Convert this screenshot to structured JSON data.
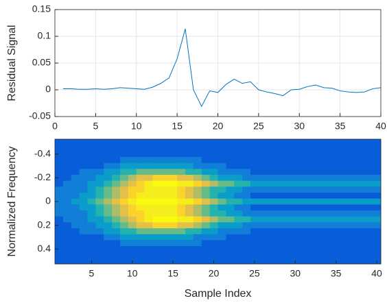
{
  "chart_data": [
    {
      "type": "line",
      "ylabel": "Residual Signal",
      "color": "#0072bd",
      "grid": true,
      "x": [
        1,
        2,
        3,
        4,
        5,
        6,
        7,
        8,
        9,
        10,
        11,
        12,
        13,
        14,
        15,
        16,
        17,
        18,
        19,
        20,
        21,
        22,
        23,
        24,
        25,
        26,
        27,
        28,
        29,
        30,
        31,
        32,
        33,
        34,
        35,
        36,
        37,
        38,
        39,
        40
      ],
      "values": [
        0.002,
        0.002,
        0.001,
        0.001,
        0.002,
        0.001,
        0.002,
        0.004,
        0.003,
        0.002,
        0.001,
        0.005,
        0.012,
        0.022,
        0.058,
        0.114,
        0.0,
        -0.031,
        -0.002,
        -0.005,
        0.01,
        0.02,
        0.012,
        0.015,
        0.0,
        -0.004,
        -0.007,
        -0.011,
        0.0,
        0.001,
        0.006,
        0.009,
        0.004,
        0.003,
        -0.002,
        -0.004,
        -0.005,
        -0.004,
        0.002,
        0.004
      ],
      "xlim": [
        0,
        40
      ],
      "xticks": [
        0,
        5,
        10,
        15,
        20,
        25,
        30,
        35,
        40
      ],
      "ylim": [
        -0.05,
        0.15
      ],
      "yticks": [
        -0.05,
        0,
        0.05,
        0.1,
        0.15
      ]
    },
    {
      "type": "heatmap",
      "xlabel": "Sample Index",
      "ylabel": "Normalized Frequency",
      "yreverse": true,
      "clim": [
        0,
        1
      ],
      "x": [
        1,
        2,
        3,
        4,
        5,
        6,
        7,
        8,
        9,
        10,
        11,
        12,
        13,
        14,
        15,
        16,
        17,
        18,
        19,
        20,
        21,
        22,
        23,
        24,
        25,
        26,
        27,
        28,
        29,
        30,
        31,
        32,
        33,
        34,
        35,
        36,
        37,
        38,
        39,
        40
      ],
      "y": [
        -0.5,
        -0.45,
        -0.4,
        -0.35,
        -0.3,
        -0.25,
        -0.2,
        -0.15,
        -0.1,
        -0.05,
        0,
        0.05,
        0.1,
        0.15,
        0.2,
        0.25,
        0.3,
        0.35,
        0.4,
        0.45,
        0.5
      ],
      "z": [
        [
          0.1,
          0.1,
          0.1,
          0.1,
          0.1,
          0.1,
          0.1,
          0.1,
          0.1,
          0.1,
          0.1,
          0.1,
          0.1,
          0.1,
          0.1,
          0.1,
          0.1,
          0.1,
          0.1,
          0.1,
          0.1,
          0.1,
          0.1,
          0.1,
          0.1,
          0.1,
          0.1,
          0.1,
          0.1,
          0.1,
          0.1,
          0.1,
          0.1,
          0.1,
          0.1,
          0.1,
          0.1,
          0.1,
          0.1,
          0.1
        ],
        [
          0.1,
          0.1,
          0.1,
          0.1,
          0.1,
          0.1,
          0.1,
          0.1,
          0.1,
          0.1,
          0.1,
          0.1,
          0.1,
          0.1,
          0.1,
          0.1,
          0.1,
          0.1,
          0.1,
          0.1,
          0.1,
          0.1,
          0.1,
          0.1,
          0.1,
          0.1,
          0.1,
          0.1,
          0.1,
          0.1,
          0.1,
          0.1,
          0.1,
          0.1,
          0.1,
          0.1,
          0.1,
          0.1,
          0.1,
          0.1
        ],
        [
          0.1,
          0.1,
          0.1,
          0.1,
          0.1,
          0.1,
          0.1,
          0.1,
          0.1,
          0.1,
          0.1,
          0.1,
          0.1,
          0.1,
          0.1,
          0.1,
          0.1,
          0.1,
          0.1,
          0.1,
          0.1,
          0.1,
          0.1,
          0.1,
          0.1,
          0.1,
          0.1,
          0.1,
          0.1,
          0.1,
          0.1,
          0.1,
          0.1,
          0.1,
          0.1,
          0.1,
          0.1,
          0.1,
          0.1,
          0.1
        ],
        [
          0.1,
          0.1,
          0.1,
          0.1,
          0.1,
          0.1,
          0.1,
          0.1,
          0.2,
          0.2,
          0.2,
          0.2,
          0.2,
          0.2,
          0.2,
          0.2,
          0.2,
          0.2,
          0.1,
          0.1,
          0.1,
          0.1,
          0.1,
          0.1,
          0.1,
          0.1,
          0.1,
          0.1,
          0.1,
          0.1,
          0.1,
          0.1,
          0.1,
          0.1,
          0.1,
          0.1,
          0.1,
          0.1,
          0.1,
          0.1
        ],
        [
          0.1,
          0.1,
          0.1,
          0.1,
          0.1,
          0.1,
          0.2,
          0.2,
          0.3,
          0.3,
          0.3,
          0.3,
          0.3,
          0.3,
          0.3,
          0.3,
          0.3,
          0.2,
          0.2,
          0.2,
          0.2,
          0.1,
          0.1,
          0.1,
          0.1,
          0.1,
          0.1,
          0.1,
          0.1,
          0.1,
          0.1,
          0.1,
          0.1,
          0.1,
          0.1,
          0.1,
          0.1,
          0.1,
          0.1,
          0.1
        ],
        [
          0.1,
          0.1,
          0.1,
          0.2,
          0.2,
          0.2,
          0.3,
          0.3,
          0.4,
          0.4,
          0.5,
          0.5,
          0.5,
          0.5,
          0.5,
          0.5,
          0.4,
          0.4,
          0.3,
          0.3,
          0.2,
          0.2,
          0.2,
          0.2,
          0.1,
          0.1,
          0.1,
          0.1,
          0.1,
          0.1,
          0.1,
          0.1,
          0.1,
          0.1,
          0.1,
          0.1,
          0.1,
          0.1,
          0.1,
          0.1
        ],
        [
          0.1,
          0.1,
          0.2,
          0.2,
          0.2,
          0.3,
          0.3,
          0.4,
          0.5,
          0.6,
          0.7,
          0.7,
          0.8,
          0.8,
          0.8,
          0.7,
          0.7,
          0.6,
          0.5,
          0.4,
          0.3,
          0.3,
          0.3,
          0.2,
          0.2,
          0.2,
          0.2,
          0.2,
          0.2,
          0.2,
          0.2,
          0.2,
          0.2,
          0.2,
          0.2,
          0.2,
          0.2,
          0.2,
          0.2,
          0.2
        ],
        [
          0.1,
          0.2,
          0.2,
          0.2,
          0.3,
          0.3,
          0.4,
          0.5,
          0.6,
          0.7,
          0.8,
          0.9,
          1,
          1,
          1,
          0.9,
          0.9,
          0.8,
          0.7,
          0.6,
          0.5,
          0.5,
          0.4,
          0.4,
          0.3,
          0.3,
          0.3,
          0.3,
          0.3,
          0.3,
          0.3,
          0.3,
          0.3,
          0.3,
          0.3,
          0.3,
          0.3,
          0.3,
          0.3,
          0.3
        ],
        [
          0.2,
          0.2,
          0.2,
          0.2,
          0.3,
          0.4,
          0.5,
          0.6,
          0.7,
          0.8,
          0.8,
          0.9,
          0.9,
          0.9,
          0.9,
          0.8,
          0.7,
          0.6,
          0.5,
          0.4,
          0.4,
          0.3,
          0.3,
          0.2,
          0.2,
          0.2,
          0.2,
          0.2,
          0.2,
          0.2,
          0.2,
          0.2,
          0.2,
          0.2,
          0.2,
          0.2,
          0.2,
          0.2,
          0.2,
          0.2
        ],
        [
          0.2,
          0.2,
          0.2,
          0.3,
          0.3,
          0.4,
          0.5,
          0.6,
          0.7,
          0.8,
          0.9,
          0.9,
          0.9,
          0.9,
          0.9,
          0.8,
          0.7,
          0.6,
          0.5,
          0.4,
          0.3,
          0.3,
          0.2,
          0.2,
          0.1,
          0.1,
          0.1,
          0.1,
          0.1,
          0.1,
          0.1,
          0.1,
          0.1,
          0.1,
          0.1,
          0.1,
          0.1,
          0.1,
          0.1,
          0.1
        ],
        [
          0.2,
          0.2,
          0.3,
          0.3,
          0.4,
          0.5,
          0.6,
          0.7,
          0.8,
          0.9,
          1,
          1,
          1,
          1,
          1,
          0.9,
          0.9,
          0.8,
          0.7,
          0.6,
          0.5,
          0.4,
          0.4,
          0.3,
          0.3,
          0.3,
          0.3,
          0.3,
          0.3,
          0.3,
          0.3,
          0.3,
          0.3,
          0.3,
          0.3,
          0.3,
          0.3,
          0.3,
          0.3,
          0.3
        ],
        [
          0.2,
          0.2,
          0.2,
          0.3,
          0.3,
          0.4,
          0.5,
          0.6,
          0.7,
          0.8,
          0.9,
          0.9,
          0.9,
          0.9,
          0.9,
          0.8,
          0.7,
          0.6,
          0.5,
          0.4,
          0.3,
          0.3,
          0.2,
          0.2,
          0.1,
          0.1,
          0.1,
          0.1,
          0.1,
          0.1,
          0.1,
          0.1,
          0.1,
          0.1,
          0.1,
          0.1,
          0.1,
          0.1,
          0.1,
          0.1
        ],
        [
          0.2,
          0.2,
          0.2,
          0.2,
          0.3,
          0.4,
          0.5,
          0.6,
          0.7,
          0.8,
          0.8,
          0.9,
          0.9,
          0.9,
          0.9,
          0.8,
          0.7,
          0.6,
          0.5,
          0.4,
          0.4,
          0.3,
          0.3,
          0.2,
          0.2,
          0.2,
          0.2,
          0.2,
          0.2,
          0.2,
          0.2,
          0.2,
          0.2,
          0.2,
          0.2,
          0.2,
          0.2,
          0.2,
          0.2,
          0.2
        ],
        [
          0.1,
          0.2,
          0.2,
          0.2,
          0.3,
          0.3,
          0.4,
          0.5,
          0.6,
          0.7,
          0.8,
          0.9,
          1,
          1,
          1,
          0.9,
          0.9,
          0.8,
          0.7,
          0.6,
          0.5,
          0.5,
          0.4,
          0.4,
          0.3,
          0.3,
          0.3,
          0.3,
          0.3,
          0.3,
          0.3,
          0.3,
          0.3,
          0.3,
          0.3,
          0.3,
          0.3,
          0.3,
          0.3,
          0.3
        ],
        [
          0.1,
          0.1,
          0.2,
          0.2,
          0.2,
          0.3,
          0.3,
          0.4,
          0.5,
          0.6,
          0.7,
          0.7,
          0.8,
          0.8,
          0.8,
          0.7,
          0.7,
          0.6,
          0.5,
          0.4,
          0.3,
          0.3,
          0.3,
          0.2,
          0.2,
          0.2,
          0.2,
          0.2,
          0.2,
          0.2,
          0.2,
          0.2,
          0.2,
          0.2,
          0.2,
          0.2,
          0.2,
          0.2,
          0.2,
          0.2
        ],
        [
          0.1,
          0.1,
          0.1,
          0.2,
          0.2,
          0.2,
          0.3,
          0.3,
          0.4,
          0.4,
          0.5,
          0.5,
          0.5,
          0.5,
          0.5,
          0.5,
          0.4,
          0.4,
          0.3,
          0.3,
          0.2,
          0.2,
          0.2,
          0.2,
          0.1,
          0.1,
          0.1,
          0.1,
          0.1,
          0.1,
          0.1,
          0.1,
          0.1,
          0.1,
          0.1,
          0.1,
          0.1,
          0.1,
          0.1,
          0.1
        ],
        [
          0.1,
          0.1,
          0.1,
          0.1,
          0.1,
          0.1,
          0.2,
          0.2,
          0.3,
          0.3,
          0.3,
          0.3,
          0.3,
          0.3,
          0.3,
          0.3,
          0.3,
          0.2,
          0.2,
          0.2,
          0.2,
          0.1,
          0.1,
          0.1,
          0.1,
          0.1,
          0.1,
          0.1,
          0.1,
          0.1,
          0.1,
          0.1,
          0.1,
          0.1,
          0.1,
          0.1,
          0.1,
          0.1,
          0.1,
          0.1
        ],
        [
          0.1,
          0.1,
          0.1,
          0.1,
          0.1,
          0.1,
          0.1,
          0.1,
          0.2,
          0.2,
          0.2,
          0.2,
          0.2,
          0.2,
          0.2,
          0.2,
          0.2,
          0.2,
          0.1,
          0.1,
          0.1,
          0.1,
          0.1,
          0.1,
          0.1,
          0.1,
          0.1,
          0.1,
          0.1,
          0.1,
          0.1,
          0.1,
          0.1,
          0.1,
          0.1,
          0.1,
          0.1,
          0.1,
          0.1,
          0.1
        ],
        [
          0.1,
          0.1,
          0.1,
          0.1,
          0.1,
          0.1,
          0.1,
          0.1,
          0.1,
          0.1,
          0.1,
          0.1,
          0.1,
          0.1,
          0.1,
          0.1,
          0.1,
          0.1,
          0.1,
          0.1,
          0.1,
          0.1,
          0.1,
          0.1,
          0.1,
          0.1,
          0.1,
          0.1,
          0.1,
          0.1,
          0.1,
          0.1,
          0.1,
          0.1,
          0.1,
          0.1,
          0.1,
          0.1,
          0.1,
          0.1
        ],
        [
          0.1,
          0.1,
          0.1,
          0.1,
          0.1,
          0.1,
          0.1,
          0.1,
          0.1,
          0.1,
          0.1,
          0.1,
          0.1,
          0.1,
          0.1,
          0.1,
          0.1,
          0.1,
          0.1,
          0.1,
          0.1,
          0.1,
          0.1,
          0.1,
          0.1,
          0.1,
          0.1,
          0.1,
          0.1,
          0.1,
          0.1,
          0.1,
          0.1,
          0.1,
          0.1,
          0.1,
          0.1,
          0.1,
          0.1,
          0.1
        ],
        [
          0.1,
          0.1,
          0.1,
          0.1,
          0.1,
          0.1,
          0.1,
          0.1,
          0.1,
          0.1,
          0.1,
          0.1,
          0.1,
          0.1,
          0.1,
          0.1,
          0.1,
          0.1,
          0.1,
          0.1,
          0.1,
          0.1,
          0.1,
          0.1,
          0.1,
          0.1,
          0.1,
          0.1,
          0.1,
          0.1,
          0.1,
          0.1,
          0.1,
          0.1,
          0.1,
          0.1,
          0.1,
          0.1,
          0.1,
          0.1
        ]
      ],
      "xlim": [
        0.5,
        40.5
      ],
      "xticks": [
        5,
        10,
        15,
        20,
        25,
        30,
        35,
        40
      ],
      "ylim": [
        -0.525,
        0.525
      ],
      "yticks": [
        -0.4,
        -0.2,
        0,
        0.2,
        0.4
      ]
    }
  ]
}
